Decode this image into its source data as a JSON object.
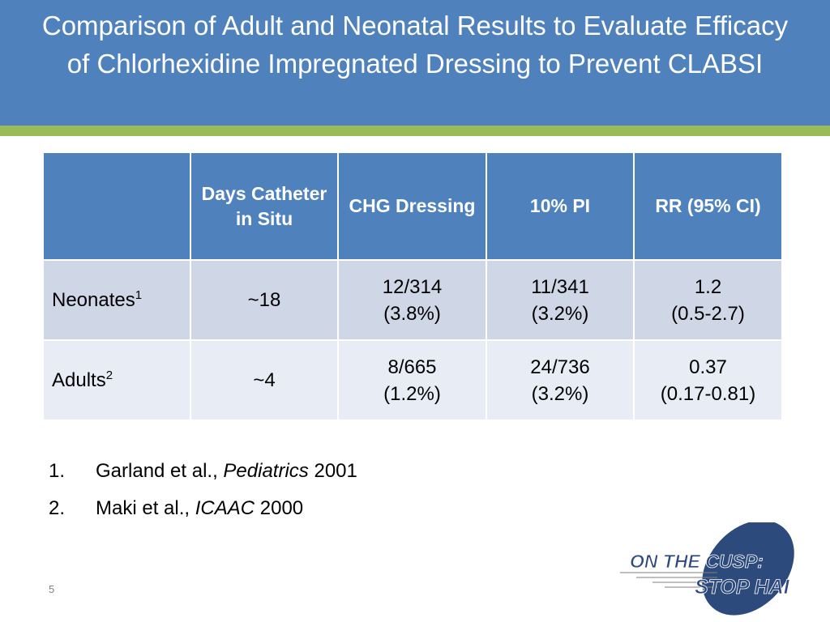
{
  "title": "Comparison of Adult and Neonatal Results to Evaluate Efficacy of Chlorhexidine Impregnated Dressing to Prevent CLABSI",
  "colors": {
    "header_blue": "#4f81bd",
    "accent_green": "#9bbb59",
    "row_odd": "#cfd7e7",
    "row_even": "#e8ecf4",
    "logo_navy": "#2d4a7c"
  },
  "table": {
    "headers": [
      "",
      "Days Catheter in Situ",
      "CHG Dressing",
      "10% PI",
      "RR (95% CI)"
    ],
    "rows": [
      {
        "label": "Neonates",
        "sup": "1",
        "days": "~18",
        "chg_count": "12/314",
        "chg_pct": "(3.8%)",
        "pi_count": "11/341",
        "pi_pct": "(3.2%)",
        "rr": "1.2",
        "ci": "(0.5-2.7)"
      },
      {
        "label": "Adults",
        "sup": "2",
        "days": "~4",
        "chg_count": "8/665",
        "chg_pct": "(1.2%)",
        "pi_count": "24/736",
        "pi_pct": "(3.2%)",
        "rr": "0.37",
        "ci": "(0.17-0.81)"
      }
    ]
  },
  "references": [
    {
      "number": "1.",
      "authors": "Garland et al.,",
      "journal": "Pediatrics",
      "year": "2001"
    },
    {
      "number": "2.",
      "authors": "Maki et al.,",
      "journal": "ICAAC",
      "year": "2000"
    }
  ],
  "page_number": "5",
  "logo": {
    "line1": "ON THE CUSP:",
    "line2": "STOP HAI"
  }
}
